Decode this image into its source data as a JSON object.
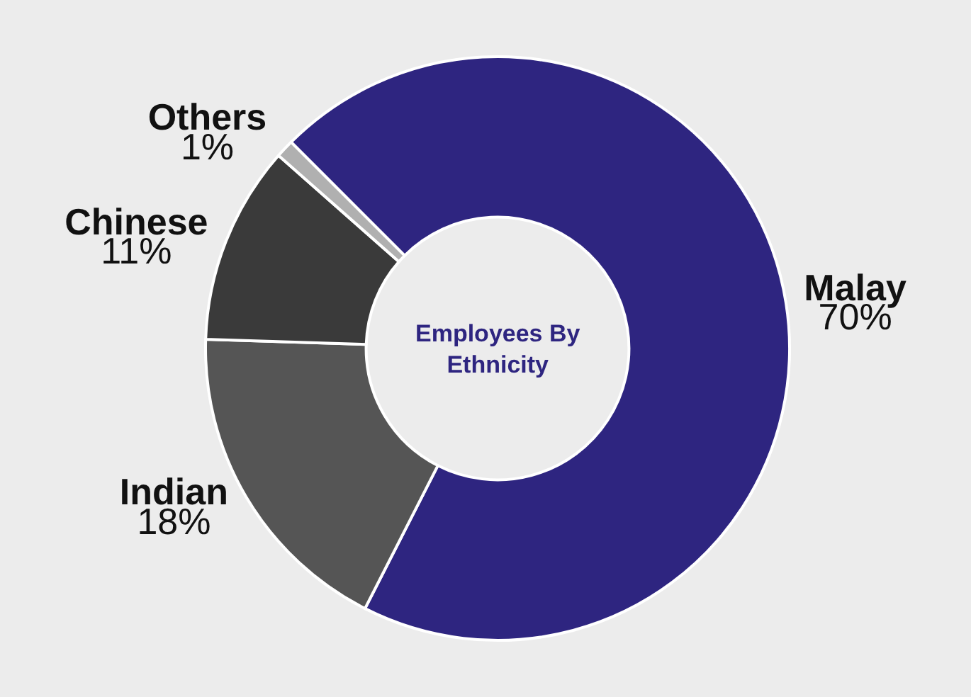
{
  "chart_data": {
    "type": "donut",
    "title": "Employees By Ethnicity",
    "categories": [
      "Malay",
      "Indian",
      "Chinese",
      "Others"
    ],
    "values": [
      70,
      18,
      11,
      1
    ],
    "colors": [
      "#2e2580",
      "#555555",
      "#3a3a3a",
      "#b0b0b0"
    ],
    "value_labels": [
      "70%",
      "18%",
      "11%",
      "1%"
    ],
    "legend": false
  }
}
